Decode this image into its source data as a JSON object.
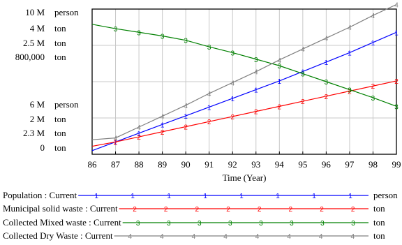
{
  "chart_data": {
    "type": "line",
    "xlabel": "Time (Year)",
    "x": [
      86,
      87,
      88,
      89,
      90,
      91,
      92,
      93,
      94,
      95,
      96,
      97,
      98,
      99
    ],
    "xlim": [
      86,
      99
    ],
    "grid": true,
    "legend_position": "bottom",
    "y_axes": [
      {
        "top": "10 M",
        "bottom": "6 M",
        "unit": "person"
      },
      {
        "top": "4 M",
        "bottom": "2 M",
        "unit": "ton"
      },
      {
        "top": "2.5 M",
        "bottom": "2.3 M",
        "unit": "ton"
      },
      {
        "top": "800,000",
        "bottom": "0",
        "unit": "ton"
      }
    ],
    "series": [
      {
        "name": "Population : Current",
        "unit": "person",
        "marker": "1",
        "color": "#0000ff",
        "ylim": [
          6000000,
          10000000
        ],
        "values": [
          6100000,
          6340000,
          6580000,
          6820000,
          7060000,
          7300000,
          7540000,
          7780000,
          8020000,
          8280000,
          8540000,
          8800000,
          9080000,
          9360000
        ]
      },
      {
        "name": "Municipal solid waste : Current",
        "unit": "ton",
        "marker": "2",
        "color": "#ff0000",
        "ylim": [
          2000000,
          4000000
        ],
        "values": [
          2110000,
          2170000,
          2240000,
          2310000,
          2380000,
          2450000,
          2520000,
          2590000,
          2660000,
          2730000,
          2800000,
          2870000,
          2940000,
          3010000
        ]
      },
      {
        "name": "Collected Mixed waste : Current",
        "unit": "ton",
        "marker": "3",
        "color": "#008000",
        "ylim": [
          2300000,
          2500000
        ],
        "values": [
          2479000,
          2473000,
          2468000,
          2463000,
          2457000,
          2448000,
          2440000,
          2431000,
          2422000,
          2411000,
          2400000,
          2389000,
          2378000,
          2366000
        ]
      },
      {
        "name": "Collected Dry Waste : Current",
        "unit": "ton",
        "marker": "4",
        "color": "#808080",
        "ylim": [
          0,
          800000
        ],
        "values": [
          80000,
          90000,
          150000,
          210000,
          270000,
          335000,
          395000,
          455000,
          520000,
          580000,
          640000,
          700000,
          765000,
          825000
        ]
      }
    ]
  }
}
